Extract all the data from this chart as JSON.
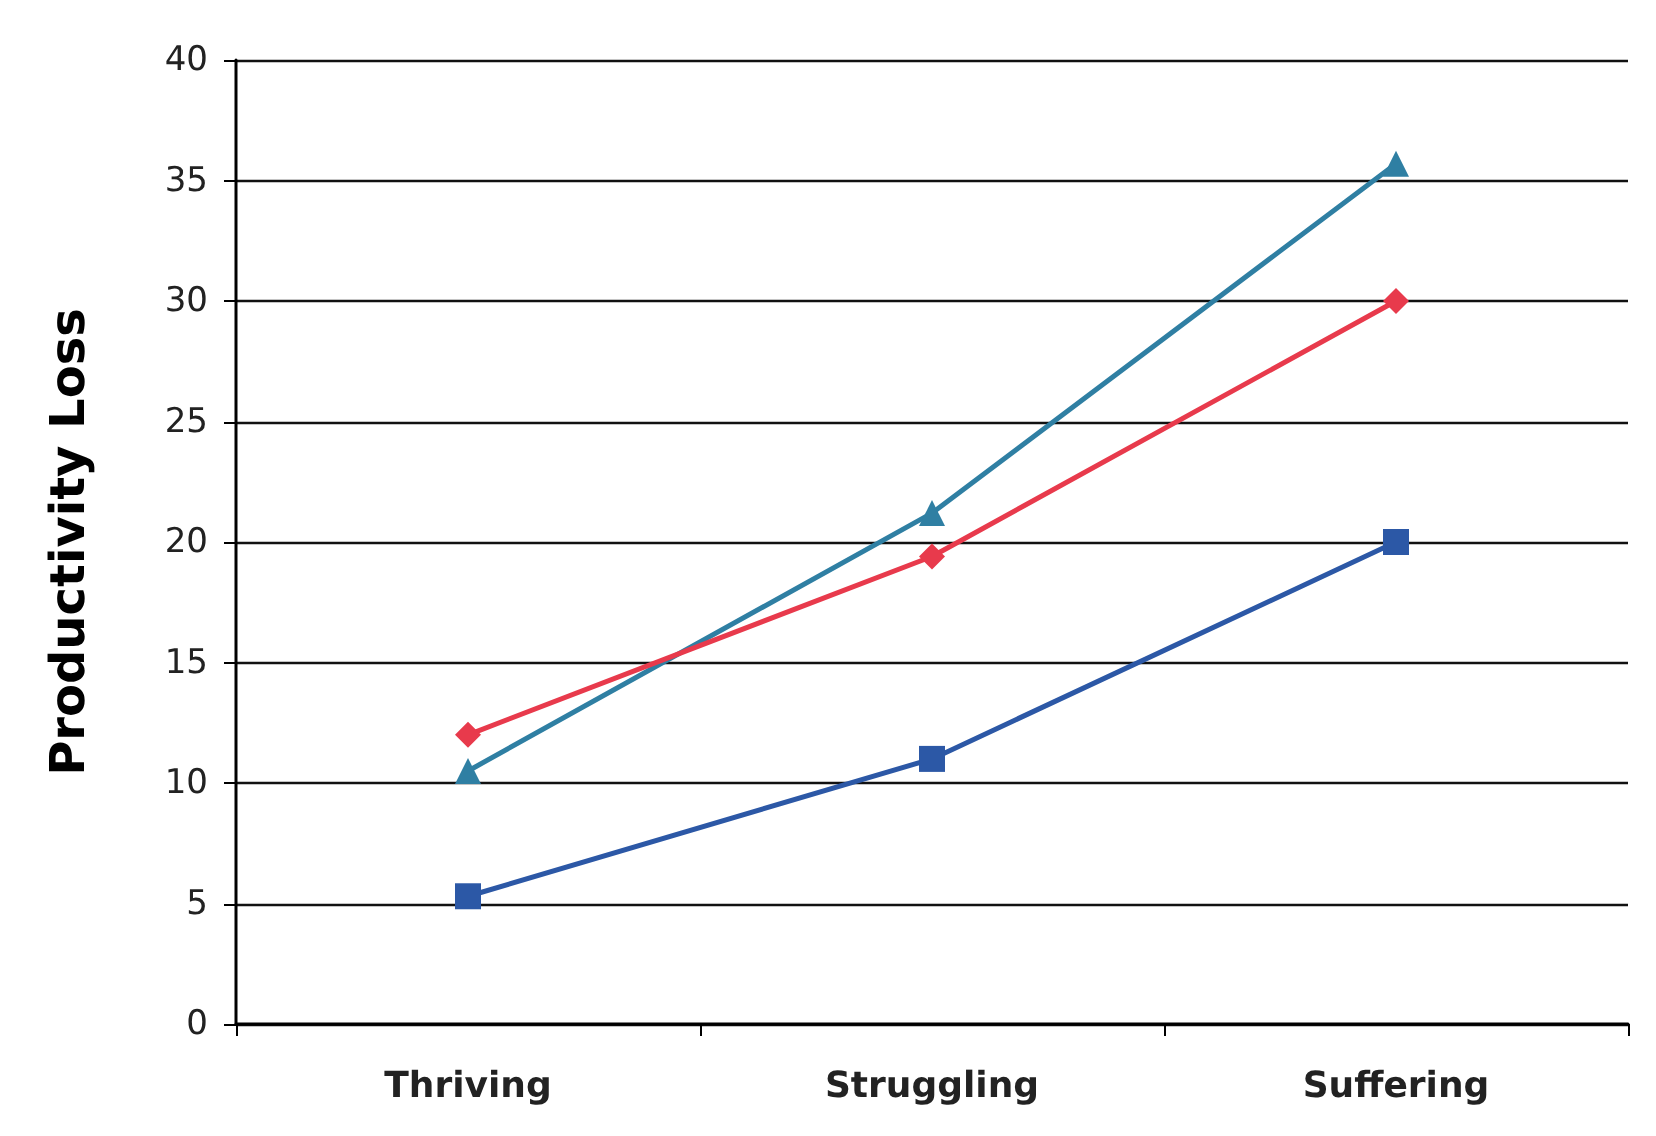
{
  "chart_data": {
    "type": "line",
    "ylabel": "Productivity Loss",
    "categories": [
      "Thriving",
      "Struggling",
      "Suffering"
    ],
    "series": [
      {
        "color": "#2f7fa3",
        "values": [
          10.5,
          21.2,
          35.7
        ],
        "marker": "triangle"
      },
      {
        "color": "#e83a4c",
        "values": [
          12,
          19.4,
          30
        ],
        "marker": "diamond"
      },
      {
        "color": "#2c58a6",
        "values": [
          5.3,
          11,
          20
        ],
        "marker": "square"
      }
    ],
    "ylim": [
      0,
      40
    ],
    "yticks": [
      0,
      5,
      10,
      15,
      20,
      25,
      30,
      35,
      40
    ],
    "grid": "y",
    "line_style": "solid"
  }
}
